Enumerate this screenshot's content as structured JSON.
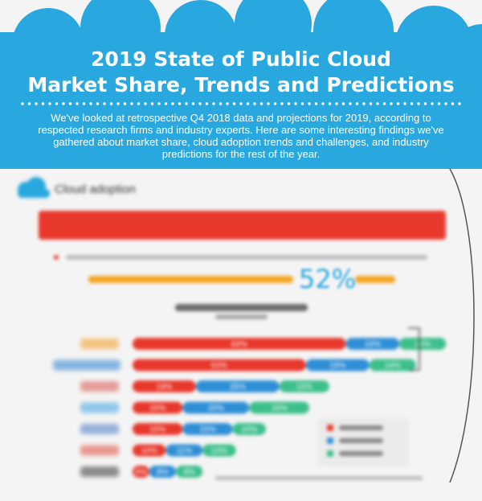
{
  "header": {
    "title_line1": "2019 State of Public Cloud",
    "title_line2": "Market Share, Trends and Predictions",
    "intro": "We've looked at retrospective Q4 2018 data and projections for 2019, according to respected research firms and industry experts. Here are some interesting findings we've gathered about market share, cloud adoption trends and challenges, and industry predictions for the rest of the year."
  },
  "section": {
    "heading": "Cloud adoption",
    "highlight_number": "52%"
  },
  "colors": {
    "header_blue": "#29a8e0",
    "bar_red": "#e8382c",
    "bar_blue": "#2f8fd6",
    "bar_green": "#3dbf8c",
    "highlight_orange": "#f5a623"
  },
  "chart_data": {
    "type": "bar",
    "orientation": "horizontal",
    "stacked": true,
    "categories": [
      "AWS",
      "Microsoft Azure",
      "Google Cloud",
      "IBM Cloud",
      "VMware",
      "Oracle",
      "Alibaba"
    ],
    "series": [
      {
        "name": "",
        "values": [
          64,
          52,
          19,
          15,
          15,
          10,
          5
        ]
      },
      {
        "name": "",
        "values": [
          16,
          19,
          25,
          20,
          15,
          11,
          8
        ]
      },
      {
        "name": "",
        "values": [
          14,
          14,
          15,
          18,
          10,
          10,
          8
        ]
      }
    ],
    "xlim": [
      0,
      100
    ],
    "grid": false,
    "legend": "bottom-right"
  }
}
